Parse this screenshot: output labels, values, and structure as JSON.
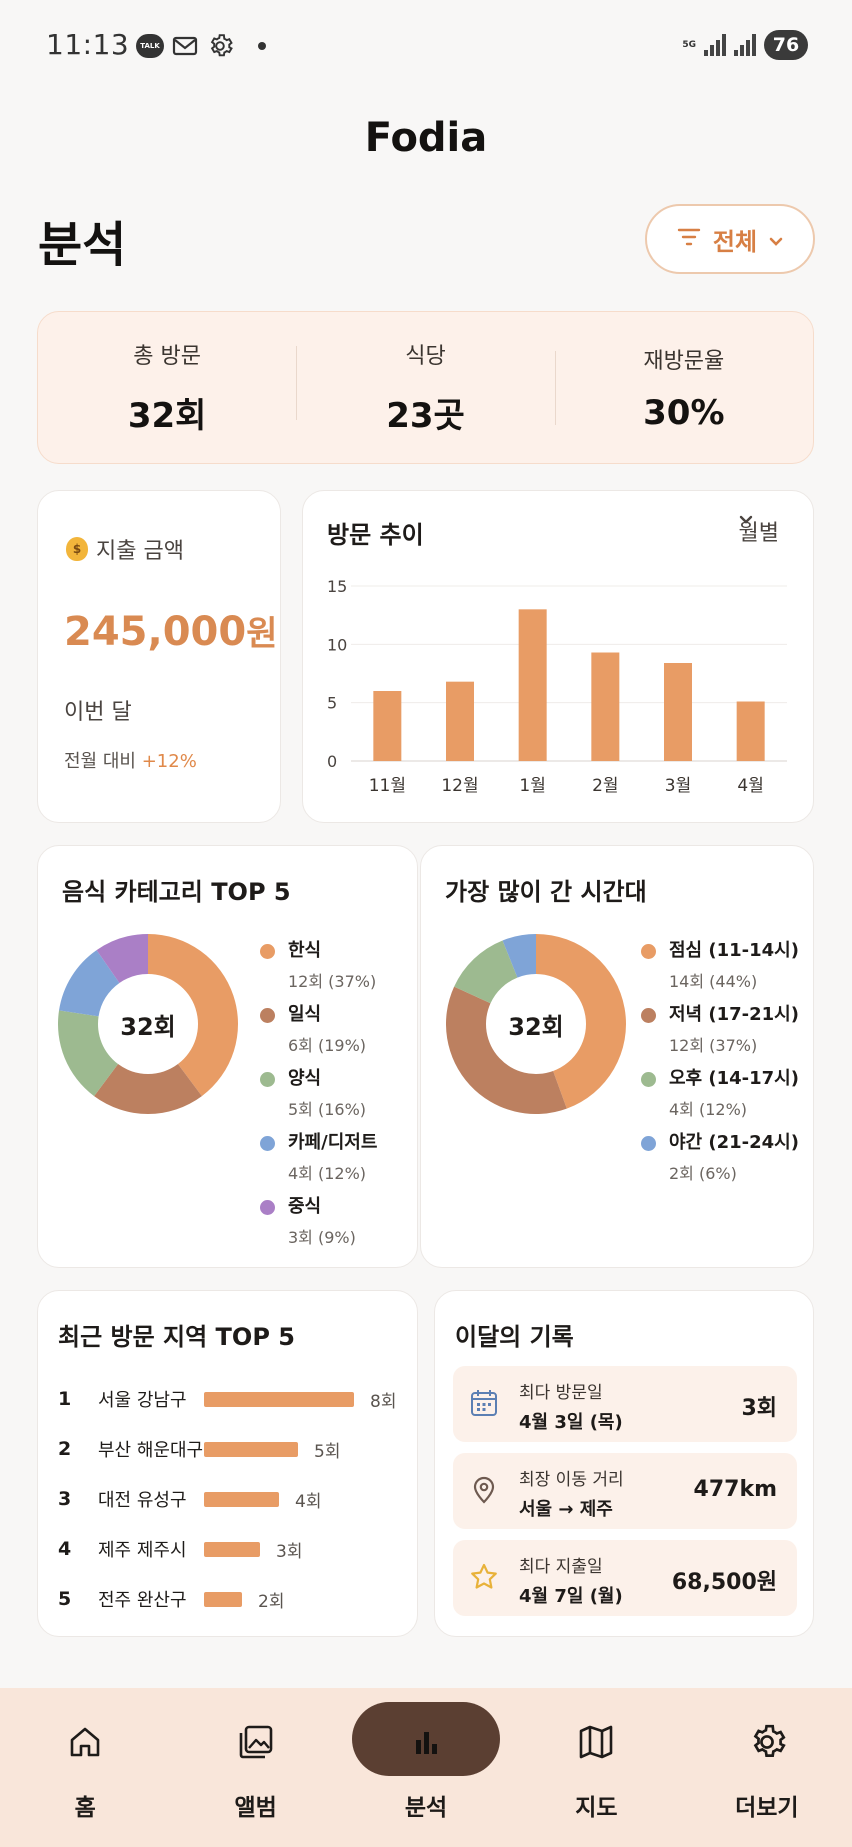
{
  "status_bar": {
    "time": "11:13",
    "talk_label": "TALK",
    "network": "5G",
    "battery": "76"
  },
  "app_title": "Fodia",
  "page_title": "분석",
  "filter": {
    "label": "전체"
  },
  "summary": [
    {
      "label": "총 방문",
      "value": "32회"
    },
    {
      "label": "식당",
      "value": "23곳"
    },
    {
      "label": "재방문율",
      "value": "30%"
    }
  ],
  "spend": {
    "label": "지출 금액",
    "amount": "245,000",
    "unit": "원",
    "period": "이번 달",
    "compare_label": "전월 대비",
    "compare_value": "+12%"
  },
  "trend": {
    "title": "방문 추이",
    "select_label": "월별",
    "chart_data": {
      "type": "bar",
      "categories": [
        "11월",
        "12월",
        "1월",
        "2월",
        "3월",
        "4월"
      ],
      "values": [
        6,
        6.8,
        13,
        9.3,
        8.4,
        5.1
      ],
      "ylim": [
        0,
        15
      ],
      "yticks": [
        "0",
        "5",
        "10",
        "15"
      ],
      "grid": true,
      "color": "#e89c65"
    }
  },
  "categories": {
    "title": "음식 카테고리 TOP 5",
    "center": "32회",
    "items": [
      {
        "name": "한식",
        "detail": "12회 (37%)",
        "pct": 37,
        "color": "#e89c65"
      },
      {
        "name": "일식",
        "detail": "6회 (19%)",
        "pct": 19,
        "color": "#bc8060"
      },
      {
        "name": "양식",
        "detail": "5회 (16%)",
        "pct": 16,
        "color": "#9dba90"
      },
      {
        "name": "카페/디저트",
        "detail": "4회 (12%)",
        "pct": 12,
        "color": "#7fa4d7"
      },
      {
        "name": "중식",
        "detail": "3회 (9%)",
        "pct": 9,
        "color": "#aa7fc6"
      }
    ]
  },
  "times": {
    "title": "가장 많이 간 시간대",
    "center": "32회",
    "items": [
      {
        "name": "점심 (11-14시)",
        "detail": "14회 (44%)",
        "pct": 44,
        "color": "#e89c65"
      },
      {
        "name": "저녁 (17-21시)",
        "detail": "12회 (37%)",
        "pct": 37,
        "color": "#bc8060"
      },
      {
        "name": "오후 (14-17시)",
        "detail": "4회 (12%)",
        "pct": 12,
        "color": "#9dba90"
      },
      {
        "name": "야간 (21-24시)",
        "detail": "2회 (6%)",
        "pct": 6,
        "color": "#7fa4d7"
      }
    ]
  },
  "regions": {
    "title": "최근 방문 지역 TOP 5",
    "items": [
      {
        "rank": "1",
        "name": "서울 강남구",
        "count": "8회",
        "value": 8
      },
      {
        "rank": "2",
        "name": "부산 해운대구",
        "count": "5회",
        "value": 5
      },
      {
        "rank": "3",
        "name": "대전 유성구",
        "count": "4회",
        "value": 4
      },
      {
        "rank": "4",
        "name": "제주 제주시",
        "count": "3회",
        "value": 3
      },
      {
        "rank": "5",
        "name": "전주 완산구",
        "count": "2회",
        "value": 2
      }
    ]
  },
  "records": {
    "title": "이달의 기록",
    "items": [
      {
        "icon": "calendar-icon",
        "label": "최다 방문일",
        "sub": "4월 3일 (목)",
        "value": "3회"
      },
      {
        "icon": "location-pin-icon",
        "label": "최장 이동 거리",
        "sub": "서울 → 제주",
        "value": "477km"
      },
      {
        "icon": "star-icon",
        "label": "최다 지출일",
        "sub": "4월 7일 (월)",
        "value": "68,500원"
      }
    ]
  },
  "nav": [
    {
      "label": "홈",
      "icon": "home-icon",
      "active": false
    },
    {
      "label": "앨범",
      "icon": "album-icon",
      "active": false
    },
    {
      "label": "분석",
      "icon": "chart-icon",
      "active": true
    },
    {
      "label": "지도",
      "icon": "map-icon",
      "active": false
    },
    {
      "label": "더보기",
      "icon": "settings-icon",
      "active": false
    }
  ]
}
